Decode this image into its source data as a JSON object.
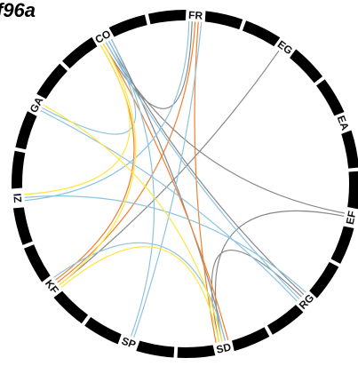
{
  "title": "f96a",
  "colors": {
    "ring": "#000000",
    "gray": "#888888",
    "orange": "#f08030",
    "blue": "#8cc4e0",
    "yellow": "#ffe640"
  },
  "chart_data": {
    "type": "chord",
    "nodes": [
      {
        "id": "FR",
        "label": "FR"
      },
      {
        "id": "EG",
        "label": "EG"
      },
      {
        "id": "EA",
        "label": "EA"
      },
      {
        "id": "EF",
        "label": "EF"
      },
      {
        "id": "RG",
        "label": "RG"
      },
      {
        "id": "SD",
        "label": "SD"
      },
      {
        "id": "SP",
        "label": "SP"
      },
      {
        "id": "KF",
        "label": "KF"
      },
      {
        "id": "IZ",
        "label": "IZ"
      },
      {
        "id": "GA",
        "label": "GA"
      },
      {
        "id": "CO",
        "label": "CO"
      }
    ],
    "links": [
      {
        "source": "CO",
        "target": "FR",
        "color": "gray"
      },
      {
        "source": "CO",
        "target": "EF",
        "color": "gray"
      },
      {
        "source": "CO",
        "target": "RG",
        "color": "gray"
      },
      {
        "source": "CO",
        "target": "SD",
        "color": "gray"
      },
      {
        "source": "EG",
        "target": "KF",
        "color": "gray"
      },
      {
        "source": "EF",
        "target": "SD",
        "color": "gray"
      },
      {
        "source": "RG",
        "target": "SD",
        "color": "gray"
      },
      {
        "source": "FR",
        "target": "KF",
        "color": "orange"
      },
      {
        "source": "FR",
        "target": "SD",
        "color": "orange"
      },
      {
        "source": "CO",
        "target": "KF",
        "color": "orange"
      },
      {
        "source": "CO",
        "target": "SD",
        "color": "orange"
      },
      {
        "source": "FR",
        "target": "SP",
        "color": "blue"
      },
      {
        "source": "FR",
        "target": "IZ",
        "color": "blue"
      },
      {
        "source": "CO",
        "target": "RG",
        "color": "blue"
      },
      {
        "source": "GA",
        "target": "RG",
        "color": "blue"
      },
      {
        "source": "IZ",
        "target": "RG",
        "color": "blue"
      },
      {
        "source": "KF",
        "target": "SD",
        "color": "blue"
      },
      {
        "source": "CO",
        "target": "GA",
        "color": "blue"
      },
      {
        "source": "CO",
        "target": "SP",
        "color": "blue"
      },
      {
        "source": "CO",
        "target": "IZ",
        "color": "yellow"
      },
      {
        "source": "GA",
        "target": "SD",
        "color": "yellow"
      },
      {
        "source": "KF",
        "target": "SD",
        "color": "yellow"
      },
      {
        "source": "CO",
        "target": "KF",
        "color": "yellow"
      }
    ]
  }
}
